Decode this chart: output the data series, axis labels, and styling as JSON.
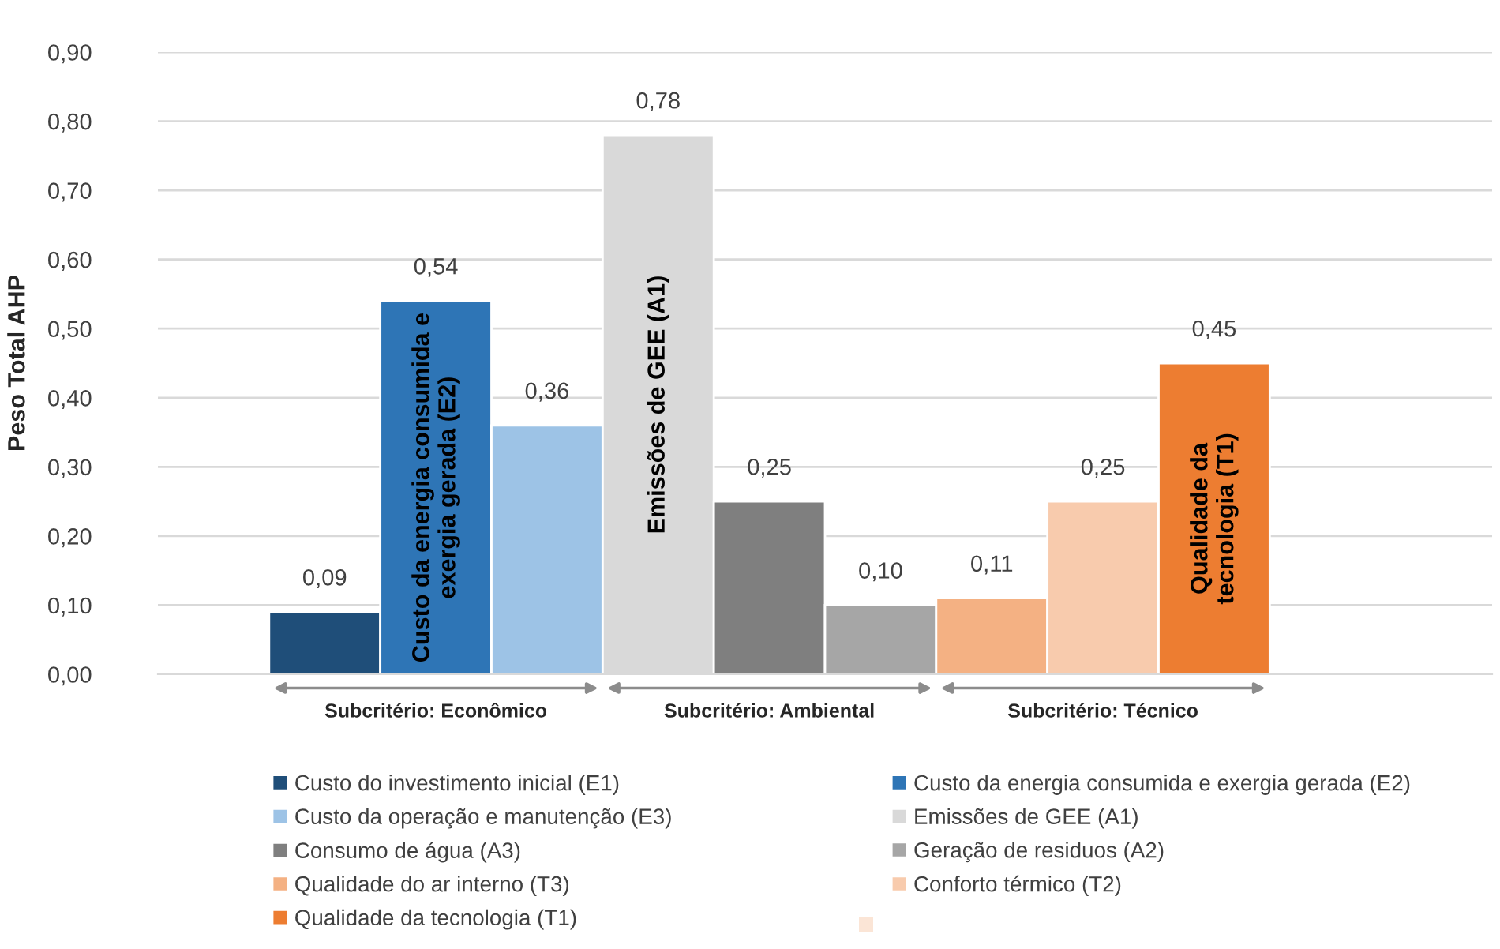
{
  "chart_data": {
    "type": "bar",
    "ylabel": "Peso Total AHP",
    "categories": [
      null,
      null,
      null,
      null,
      null,
      null,
      null,
      null,
      null,
      null,
      null,
      null
    ],
    "series": [
      {
        "name": "Custo do investimento inicial (E1)",
        "color": "#1f4e79",
        "values": [
          null,
          0.09,
          null,
          null,
          null,
          null,
          null,
          null,
          null,
          null,
          null,
          null
        ],
        "value_labels": [
          null,
          "0,09",
          null,
          null,
          null,
          null,
          null,
          null,
          null,
          null,
          null,
          null
        ]
      },
      {
        "name": "Custo da energia consumida e exergia gerada (E2)",
        "color": "#2e75b6",
        "values": [
          null,
          null,
          0.54,
          null,
          null,
          null,
          null,
          null,
          null,
          null,
          null,
          null
        ],
        "value_labels": [
          null,
          null,
          "0,54",
          null,
          null,
          null,
          null,
          null,
          null,
          null,
          null,
          null
        ]
      },
      {
        "name": "Custo da operação e manutenção (E3)",
        "color": "#9dc3e6",
        "values": [
          null,
          null,
          null,
          0.36,
          null,
          null,
          null,
          null,
          null,
          null,
          null,
          null
        ],
        "value_labels": [
          null,
          null,
          null,
          "0,36",
          null,
          null,
          null,
          null,
          null,
          null,
          null,
          null
        ]
      },
      {
        "name": "Emissões de GEE (A1)",
        "color": "#d9d9d9",
        "values": [
          null,
          null,
          null,
          null,
          0.78,
          null,
          null,
          null,
          null,
          null,
          null,
          null
        ],
        "value_labels": [
          null,
          null,
          null,
          null,
          "0,78",
          null,
          null,
          null,
          null,
          null,
          null,
          null
        ]
      },
      {
        "name": "Consumo de água (A3)",
        "color": "#7f7f7f",
        "values": [
          null,
          null,
          null,
          null,
          null,
          0.25,
          null,
          null,
          null,
          null,
          null,
          null
        ],
        "value_labels": [
          null,
          null,
          null,
          null,
          null,
          "0,25",
          null,
          null,
          null,
          null,
          null,
          null
        ]
      },
      {
        "name": "Geração de residuos (A2)",
        "color": "#a6a6a6",
        "values": [
          null,
          null,
          null,
          null,
          null,
          null,
          0.1,
          null,
          null,
          null,
          null,
          null
        ],
        "value_labels": [
          null,
          null,
          null,
          null,
          null,
          null,
          "0,10",
          null,
          null,
          null,
          null,
          null
        ]
      },
      {
        "name": "Qualidade do ar interno (T3)",
        "color": "#f4b183",
        "values": [
          null,
          null,
          null,
          null,
          null,
          null,
          null,
          0.11,
          null,
          null,
          null,
          null
        ],
        "value_labels": [
          null,
          null,
          null,
          null,
          null,
          null,
          null,
          "0,11",
          null,
          null,
          null,
          null
        ]
      },
      {
        "name": "Conforto térmico (T2)",
        "color": "#f8cbad",
        "values": [
          null,
          null,
          null,
          null,
          null,
          null,
          null,
          null,
          0.25,
          null,
          null,
          null
        ],
        "value_labels": [
          null,
          null,
          null,
          null,
          null,
          null,
          null,
          null,
          "0,25",
          null,
          null,
          null
        ]
      },
      {
        "name": "Qualidade da tecnologia (T1)",
        "color": "#ed7d31",
        "values": [
          null,
          null,
          null,
          null,
          null,
          null,
          null,
          null,
          null,
          0.45,
          null,
          null
        ],
        "value_labels": [
          null,
          null,
          null,
          null,
          null,
          null,
          null,
          null,
          null,
          "0,45",
          null,
          null
        ]
      },
      {
        "color": "#fbe5d6",
        "values": [
          null,
          null,
          null,
          null,
          null,
          null,
          null,
          null,
          null,
          null,
          null,
          null
        ]
      }
    ],
    "ylim": [
      0,
      0.9
    ],
    "yticks": [
      {
        "value": 0,
        "label": "0,00"
      },
      {
        "value": 0.1,
        "label": "0,10"
      },
      {
        "value": 0.2,
        "label": "0,20"
      },
      {
        "value": 0.3,
        "label": "0,30"
      },
      {
        "value": 0.4,
        "label": "0,40"
      },
      {
        "value": 0.5,
        "label": "0,50"
      },
      {
        "value": 0.6,
        "label": "0,60"
      },
      {
        "value": 0.7,
        "label": "0,70"
      },
      {
        "value": 0.8,
        "label": "0,80"
      },
      {
        "value": 0.9,
        "label": "0,90"
      }
    ],
    "grid": "y",
    "legend": "bottom",
    "annotations": [
      "Custo da energia consumida e\nexergia gerada (E2)",
      "Emissões de GEE (A1)",
      "Qualidade da\ntecnologia (T1)",
      "Subcritério: Econômico",
      "Subcritério: Ambiental",
      "Subcritério: Técnico"
    ]
  }
}
